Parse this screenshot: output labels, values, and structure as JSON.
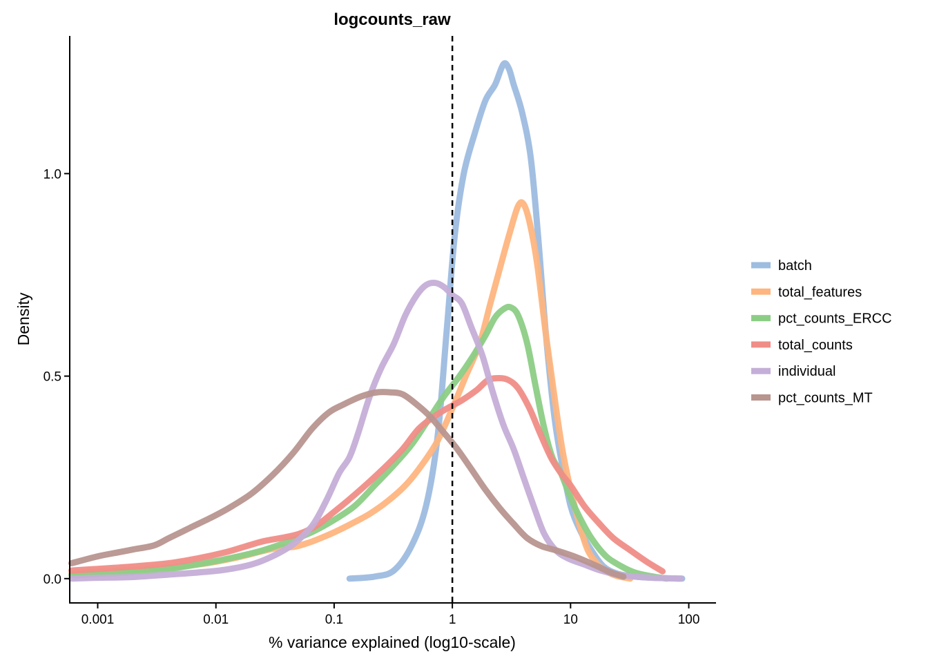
{
  "chart_data": {
    "type": "line",
    "title": "logcounts_raw",
    "xlabel": "% variance explained (log10-scale)",
    "ylabel": "Density",
    "xscale": "log10",
    "xlim": [
      0.00058,
      170
    ],
    "ylim": [
      -0.06,
      1.34
    ],
    "xticks": [
      {
        "value": 0.001,
        "label": "0.001"
      },
      {
        "value": 0.01,
        "label": "0.01"
      },
      {
        "value": 0.1,
        "label": "0.1"
      },
      {
        "value": 1,
        "label": "1"
      },
      {
        "value": 10,
        "label": "10"
      },
      {
        "value": 100,
        "label": "100"
      }
    ],
    "yticks": [
      {
        "value": 0.0,
        "label": "0.0"
      },
      {
        "value": 0.5,
        "label": "0.5"
      },
      {
        "value": 1.0,
        "label": "1.0"
      }
    ],
    "reference_line": {
      "x": 1,
      "style": "dashed",
      "color": "#000000"
    },
    "grid": false,
    "legend_position": "right",
    "series": [
      {
        "name": "batch",
        "color": "#9DBCE0",
        "points": [
          [
            0.135,
            0.0
          ],
          [
            0.22,
            0.005
          ],
          [
            0.32,
            0.02
          ],
          [
            0.45,
            0.08
          ],
          [
            0.6,
            0.18
          ],
          [
            0.75,
            0.35
          ],
          [
            0.9,
            0.62
          ],
          [
            1.05,
            0.85
          ],
          [
            1.25,
            1.0
          ],
          [
            1.55,
            1.1
          ],
          [
            1.9,
            1.18
          ],
          [
            2.3,
            1.22
          ],
          [
            2.7,
            1.27
          ],
          [
            3.0,
            1.26
          ],
          [
            3.3,
            1.22
          ],
          [
            3.9,
            1.15
          ],
          [
            4.6,
            1.04
          ],
          [
            5.3,
            0.85
          ],
          [
            6.2,
            0.6
          ],
          [
            7.3,
            0.4
          ],
          [
            8.5,
            0.28
          ],
          [
            10,
            0.18
          ],
          [
            12,
            0.12
          ],
          [
            15,
            0.07
          ],
          [
            19,
            0.03
          ],
          [
            25,
            0.012
          ],
          [
            35,
            0.005
          ],
          [
            50,
            0.002
          ],
          [
            88,
            0.0
          ]
        ]
      },
      {
        "name": "total_features",
        "color": "#FEB57F",
        "points": [
          [
            0.0006,
            0.013
          ],
          [
            0.001,
            0.017
          ],
          [
            0.002,
            0.022
          ],
          [
            0.004,
            0.028
          ],
          [
            0.008,
            0.037
          ],
          [
            0.015,
            0.052
          ],
          [
            0.025,
            0.068
          ],
          [
            0.035,
            0.077
          ],
          [
            0.045,
            0.078
          ],
          [
            0.06,
            0.088
          ],
          [
            0.08,
            0.102
          ],
          [
            0.11,
            0.12
          ],
          [
            0.15,
            0.14
          ],
          [
            0.2,
            0.16
          ],
          [
            0.28,
            0.19
          ],
          [
            0.4,
            0.23
          ],
          [
            0.55,
            0.28
          ],
          [
            0.75,
            0.34
          ],
          [
            1.0,
            0.42
          ],
          [
            1.3,
            0.5
          ],
          [
            1.7,
            0.58
          ],
          [
            2.1,
            0.68
          ],
          [
            2.6,
            0.78
          ],
          [
            3.1,
            0.86
          ],
          [
            3.6,
            0.92
          ],
          [
            4.0,
            0.925
          ],
          [
            4.5,
            0.88
          ],
          [
            5.2,
            0.78
          ],
          [
            6.2,
            0.6
          ],
          [
            7.3,
            0.45
          ],
          [
            8.5,
            0.32
          ],
          [
            10,
            0.22
          ],
          [
            12,
            0.13
          ],
          [
            14,
            0.07
          ],
          [
            17,
            0.035
          ],
          [
            21,
            0.015
          ],
          [
            25,
            0.006
          ],
          [
            32,
            0.0
          ]
        ]
      },
      {
        "name": "pct_counts_ERCC",
        "color": "#8CCD86",
        "points": [
          [
            0.0006,
            0.008
          ],
          [
            0.001,
            0.011
          ],
          [
            0.002,
            0.016
          ],
          [
            0.004,
            0.024
          ],
          [
            0.008,
            0.038
          ],
          [
            0.015,
            0.054
          ],
          [
            0.025,
            0.07
          ],
          [
            0.04,
            0.09
          ],
          [
            0.065,
            0.115
          ],
          [
            0.1,
            0.145
          ],
          [
            0.15,
            0.18
          ],
          [
            0.22,
            0.23
          ],
          [
            0.32,
            0.28
          ],
          [
            0.45,
            0.33
          ],
          [
            0.62,
            0.39
          ],
          [
            0.85,
            0.45
          ],
          [
            1.15,
            0.5
          ],
          [
            1.5,
            0.55
          ],
          [
            1.9,
            0.6
          ],
          [
            2.3,
            0.645
          ],
          [
            2.7,
            0.665
          ],
          [
            3.1,
            0.67
          ],
          [
            3.6,
            0.65
          ],
          [
            4.3,
            0.58
          ],
          [
            5.1,
            0.47
          ],
          [
            6.0,
            0.37
          ],
          [
            7.0,
            0.3
          ],
          [
            8.3,
            0.26
          ],
          [
            10,
            0.2
          ],
          [
            12,
            0.15
          ],
          [
            15,
            0.1
          ],
          [
            20,
            0.055
          ],
          [
            27,
            0.03
          ],
          [
            35,
            0.015
          ],
          [
            48,
            0.006
          ],
          [
            65,
            0.0
          ]
        ]
      },
      {
        "name": "total_counts",
        "color": "#F08D87",
        "points": [
          [
            0.0006,
            0.02
          ],
          [
            0.001,
            0.024
          ],
          [
            0.002,
            0.03
          ],
          [
            0.004,
            0.038
          ],
          [
            0.007,
            0.05
          ],
          [
            0.012,
            0.065
          ],
          [
            0.018,
            0.08
          ],
          [
            0.025,
            0.092
          ],
          [
            0.035,
            0.1
          ],
          [
            0.05,
            0.11
          ],
          [
            0.07,
            0.13
          ],
          [
            0.1,
            0.165
          ],
          [
            0.14,
            0.2
          ],
          [
            0.2,
            0.24
          ],
          [
            0.28,
            0.28
          ],
          [
            0.38,
            0.32
          ],
          [
            0.52,
            0.37
          ],
          [
            0.7,
            0.4
          ],
          [
            0.9,
            0.42
          ],
          [
            1.2,
            0.44
          ],
          [
            1.6,
            0.465
          ],
          [
            2.0,
            0.49
          ],
          [
            2.5,
            0.495
          ],
          [
            3.0,
            0.49
          ],
          [
            3.6,
            0.47
          ],
          [
            4.5,
            0.42
          ],
          [
            5.5,
            0.36
          ],
          [
            6.8,
            0.3
          ],
          [
            8.3,
            0.26
          ],
          [
            10,
            0.23
          ],
          [
            13,
            0.18
          ],
          [
            17,
            0.14
          ],
          [
            23,
            0.1
          ],
          [
            32,
            0.07
          ],
          [
            45,
            0.04
          ],
          [
            60,
            0.018
          ]
        ]
      },
      {
        "name": "individual",
        "color": "#C5AED7",
        "points": [
          [
            0.0006,
            0.0
          ],
          [
            0.001,
            0.002
          ],
          [
            0.002,
            0.004
          ],
          [
            0.004,
            0.01
          ],
          [
            0.007,
            0.015
          ],
          [
            0.012,
            0.022
          ],
          [
            0.02,
            0.035
          ],
          [
            0.03,
            0.055
          ],
          [
            0.045,
            0.085
          ],
          [
            0.065,
            0.13
          ],
          [
            0.085,
            0.19
          ],
          [
            0.11,
            0.26
          ],
          [
            0.135,
            0.3
          ],
          [
            0.16,
            0.36
          ],
          [
            0.2,
            0.45
          ],
          [
            0.25,
            0.52
          ],
          [
            0.32,
            0.58
          ],
          [
            0.4,
            0.65
          ],
          [
            0.5,
            0.7
          ],
          [
            0.6,
            0.725
          ],
          [
            0.72,
            0.73
          ],
          [
            0.85,
            0.72
          ],
          [
            1.0,
            0.7
          ],
          [
            1.2,
            0.68
          ],
          [
            1.45,
            0.62
          ],
          [
            1.8,
            0.55
          ],
          [
            2.2,
            0.46
          ],
          [
            2.7,
            0.38
          ],
          [
            3.3,
            0.32
          ],
          [
            4.0,
            0.25
          ],
          [
            5.0,
            0.17
          ],
          [
            6.0,
            0.11
          ],
          [
            7.5,
            0.07
          ],
          [
            9.5,
            0.05
          ],
          [
            13,
            0.035
          ],
          [
            18,
            0.02
          ],
          [
            25,
            0.01
          ],
          [
            35,
            0.005
          ],
          [
            50,
            0.002
          ],
          [
            85,
            0.0
          ]
        ]
      },
      {
        "name": "pct_counts_MT",
        "color": "#B8958F",
        "points": [
          [
            0.0006,
            0.038
          ],
          [
            0.001,
            0.055
          ],
          [
            0.0015,
            0.065
          ],
          [
            0.002,
            0.072
          ],
          [
            0.003,
            0.082
          ],
          [
            0.004,
            0.1
          ],
          [
            0.006,
            0.125
          ],
          [
            0.009,
            0.15
          ],
          [
            0.013,
            0.175
          ],
          [
            0.02,
            0.21
          ],
          [
            0.03,
            0.255
          ],
          [
            0.045,
            0.31
          ],
          [
            0.065,
            0.37
          ],
          [
            0.09,
            0.41
          ],
          [
            0.12,
            0.43
          ],
          [
            0.17,
            0.45
          ],
          [
            0.23,
            0.46
          ],
          [
            0.3,
            0.46
          ],
          [
            0.38,
            0.455
          ],
          [
            0.5,
            0.43
          ],
          [
            0.65,
            0.4
          ],
          [
            0.85,
            0.36
          ],
          [
            1.1,
            0.32
          ],
          [
            1.45,
            0.27
          ],
          [
            1.9,
            0.22
          ],
          [
            2.5,
            0.175
          ],
          [
            3.3,
            0.135
          ],
          [
            4.3,
            0.1
          ],
          [
            5.7,
            0.08
          ],
          [
            7.5,
            0.07
          ],
          [
            10,
            0.058
          ],
          [
            13,
            0.045
          ],
          [
            17,
            0.03
          ],
          [
            22,
            0.015
          ],
          [
            28,
            0.005
          ]
        ]
      }
    ]
  }
}
